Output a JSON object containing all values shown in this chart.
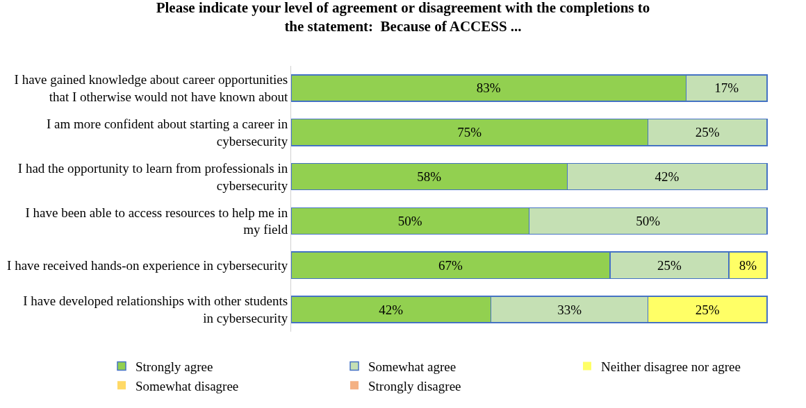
{
  "chart_data": {
    "type": "bar",
    "orientation": "horizontal",
    "stacked": true,
    "title": "Please indicate your level of agreement or disagreement with the completions to the statement:  Because of ACCESS ...",
    "categories": [
      "I have gained knowledge about career opportunities that I otherwise would not have known about",
      "I am more confident about starting a career in cybersecurity",
      "I had the opportunity to learn from professionals in cybersecurity",
      "I have been able to access resources to help me in my field",
      "I have received hands-on experience in cybersecurity",
      "I have developed relationships with other students in cybersecurity"
    ],
    "series": [
      {
        "name": "Strongly agree",
        "color": "#92d050",
        "values": [
          83,
          75,
          58,
          50,
          67,
          42
        ],
        "value_labels": [
          "83%",
          "75%",
          "58%",
          "50%",
          "67%",
          "42%"
        ]
      },
      {
        "name": "Somewhat agree",
        "color": "#c5e0b4",
        "values": [
          17,
          25,
          42,
          50,
          25,
          33
        ],
        "value_labels": [
          "17%",
          "25%",
          "42%",
          "50%",
          "25%",
          "33%"
        ]
      },
      {
        "name": "Neither disagree nor agree",
        "color": "#ffff66",
        "values": [
          0,
          0,
          0,
          0,
          8,
          25
        ],
        "value_labels": [
          null,
          null,
          null,
          null,
          "8%",
          "25%"
        ]
      },
      {
        "name": "Somewhat disagree",
        "color": "#ffd966",
        "values": [
          0,
          0,
          0,
          0,
          0,
          0
        ],
        "value_labels": [
          null,
          null,
          null,
          null,
          null,
          null
        ]
      },
      {
        "name": "Strongly disagree",
        "color": "#f4b183",
        "values": [
          0,
          0,
          0,
          0,
          0,
          0
        ],
        "value_labels": [
          null,
          null,
          null,
          null,
          null,
          null
        ]
      }
    ],
    "legend": "bottom"
  }
}
